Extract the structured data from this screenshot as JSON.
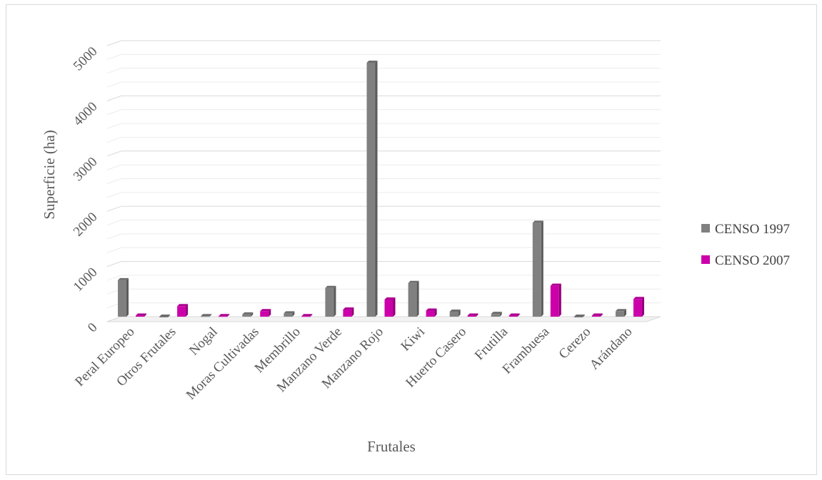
{
  "chart_data": {
    "type": "bar",
    "title": "",
    "xlabel": "Frutales",
    "ylabel": "Superficie (ha)",
    "ylim": [
      0,
      5000
    ],
    "yticks": [
      0,
      1000,
      2000,
      3000,
      4000,
      5000
    ],
    "grid": true,
    "legend_position": "right",
    "categories": [
      "Peral Europeo",
      "Otros Frutales",
      "Nogal",
      "Moras Cultivadas",
      "Membrillo",
      "Manzano Verde",
      "Manzano Rojo",
      "Kiwi",
      "Huerto Casero",
      "Frutilla",
      "Frambuesa",
      "Cerezo",
      "Arándano"
    ],
    "series": [
      {
        "name": "CENSO 1997",
        "color": "#808080",
        "values": [
          660,
          0,
          10,
          40,
          60,
          520,
          4600,
          610,
          90,
          50,
          1700,
          0,
          100
        ]
      },
      {
        "name": "CENSO 2007",
        "color": "#cc00aa",
        "values": [
          20,
          190,
          10,
          100,
          10,
          130,
          310,
          110,
          20,
          20,
          560,
          20,
          320
        ]
      }
    ]
  }
}
